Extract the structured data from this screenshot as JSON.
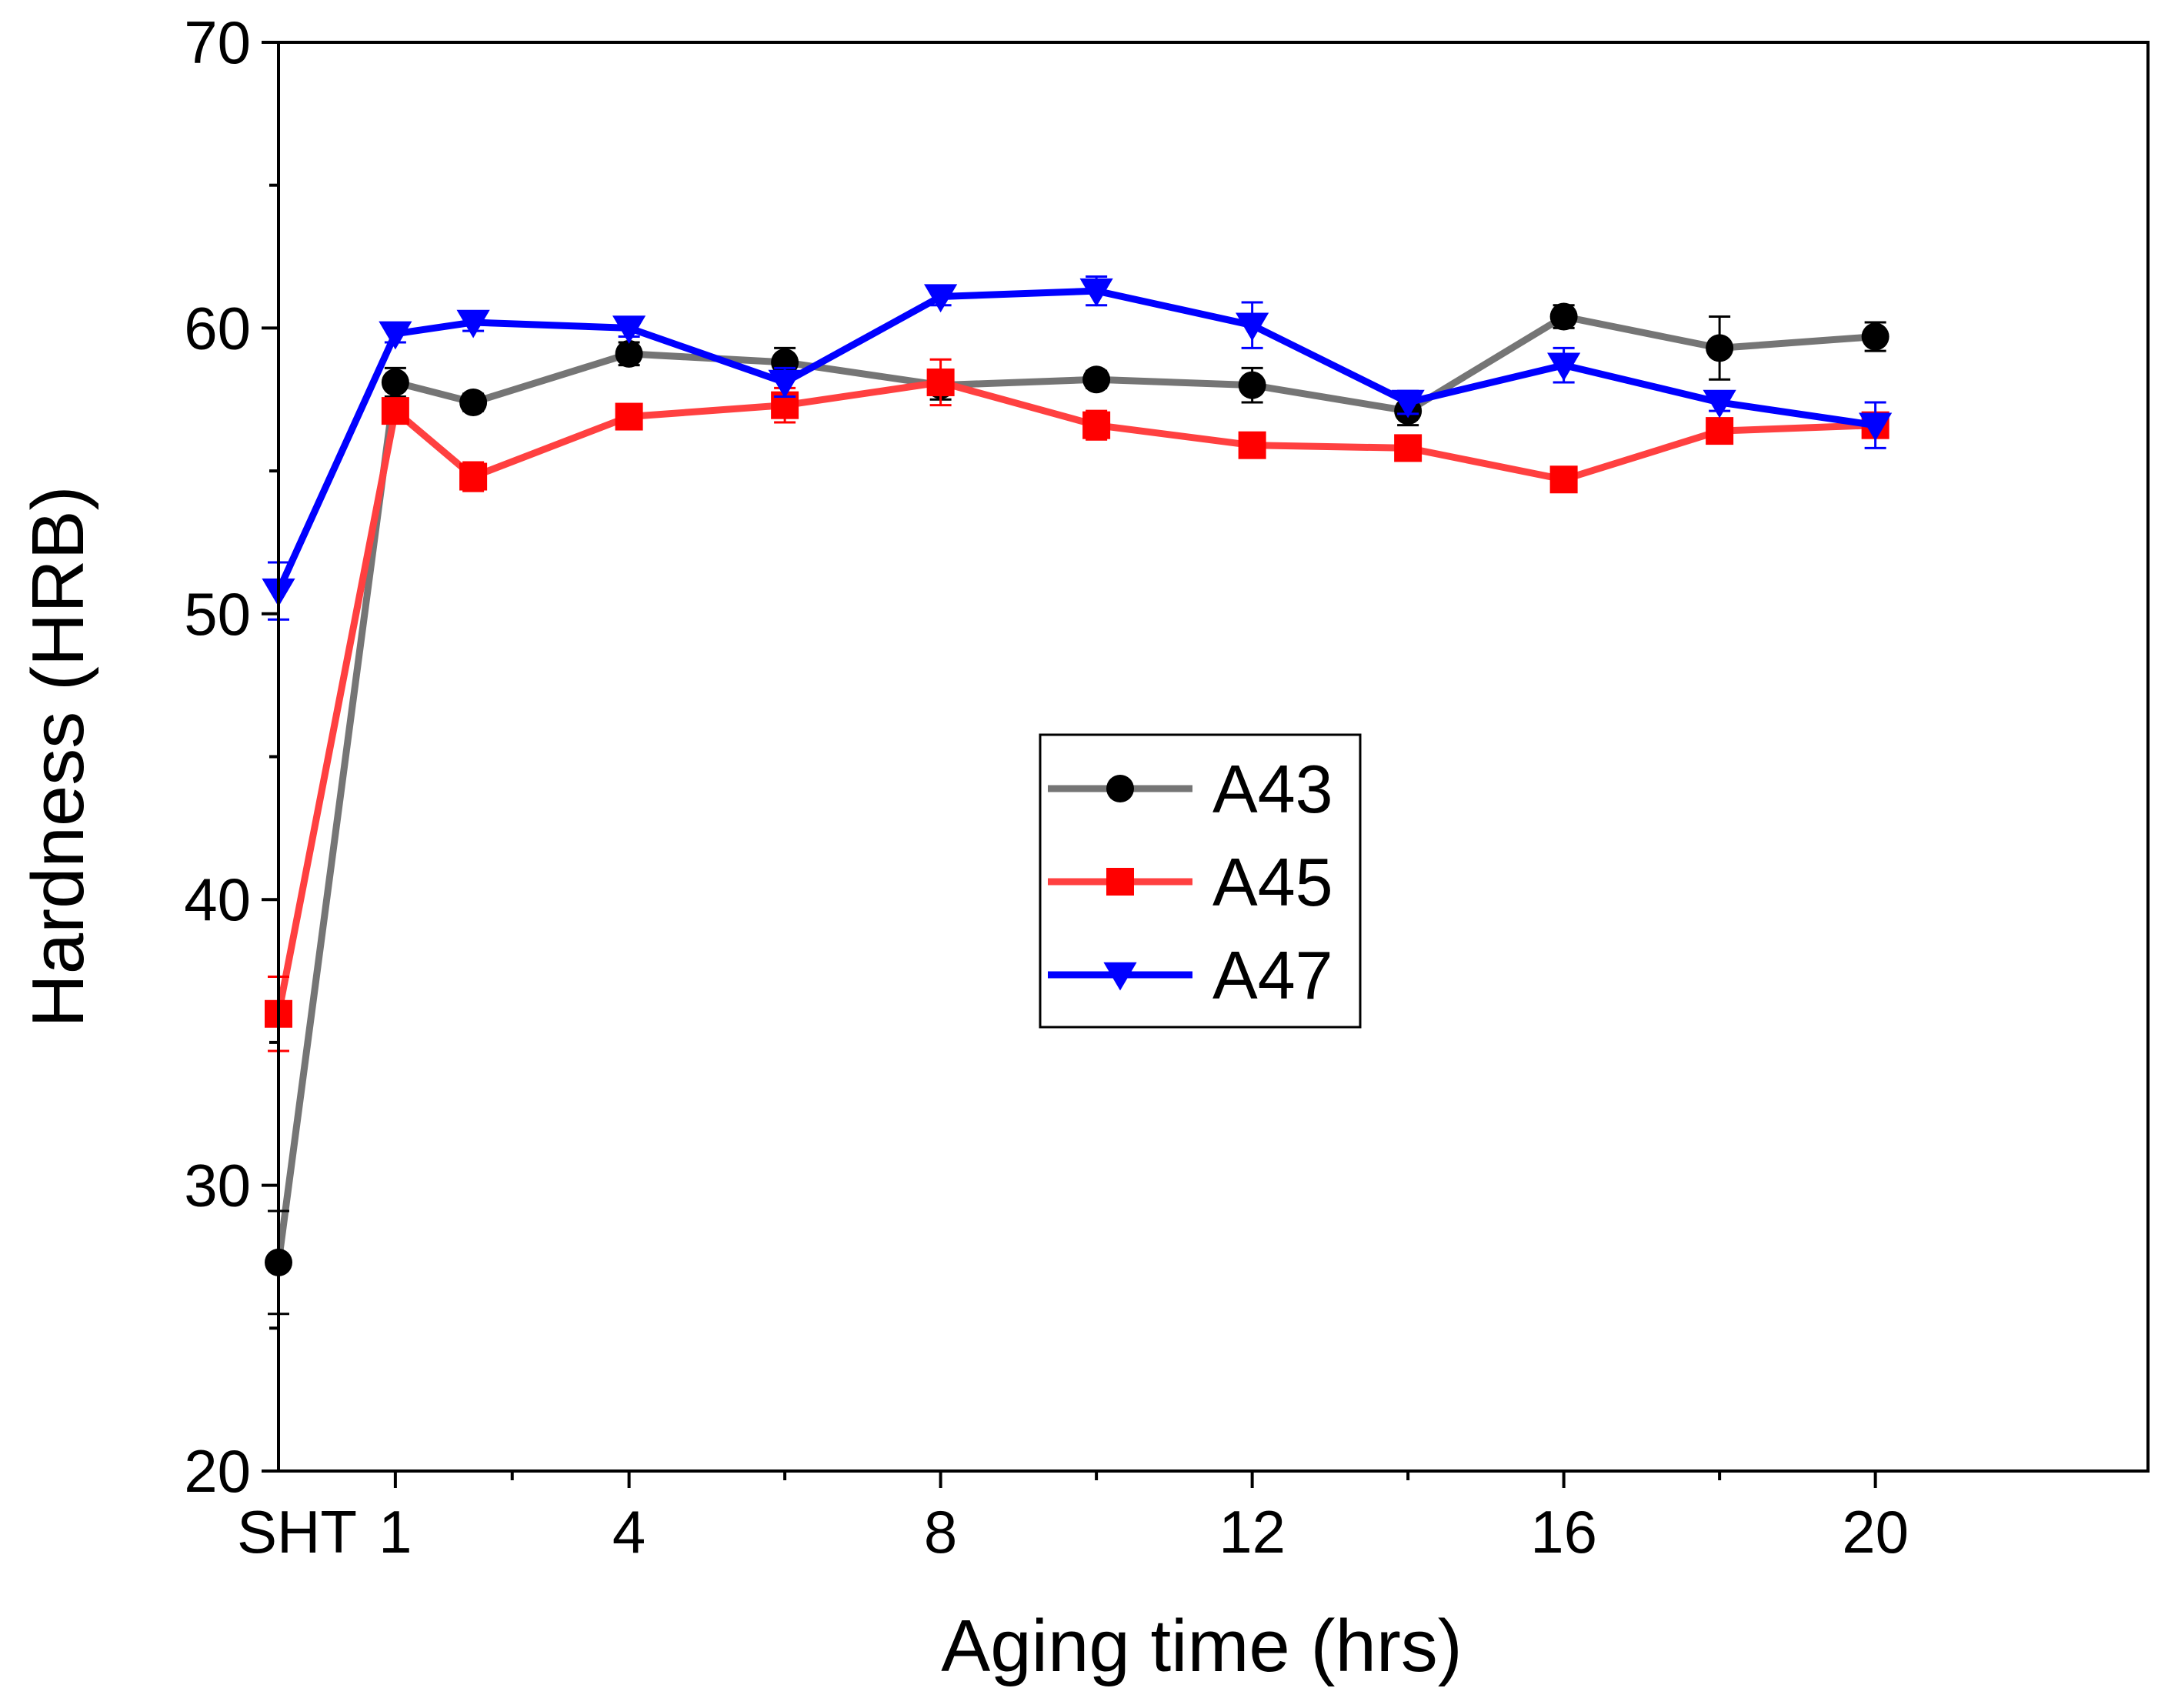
{
  "chart_data": {
    "type": "line",
    "title": "",
    "xlabel": "Aging time (hrs)",
    "ylabel": "Hardness (HRB)",
    "xlim": [
      -0.5,
      23.5
    ],
    "ylim": [
      20,
      70
    ],
    "x_ticks": [
      {
        "value": -0.5,
        "label": "SHT"
      },
      {
        "value": 1,
        "label": "1"
      },
      {
        "value": 4,
        "label": "4"
      },
      {
        "value": 8,
        "label": "8"
      },
      {
        "value": 12,
        "label": "12"
      },
      {
        "value": 16,
        "label": "16"
      },
      {
        "value": 20,
        "label": "20"
      }
    ],
    "x_minor_ticks": [
      2.5,
      6,
      10,
      14,
      18
    ],
    "y_ticks": [
      {
        "value": 20,
        "label": "20"
      },
      {
        "value": 30,
        "label": "30"
      },
      {
        "value": 40,
        "label": "40"
      },
      {
        "value": 50,
        "label": "50"
      },
      {
        "value": 60,
        "label": "60"
      },
      {
        "value": 70,
        "label": "70"
      }
    ],
    "y_minor_ticks": [
      25,
      35,
      45,
      55,
      65
    ],
    "x": [
      -0.5,
      1,
      2,
      4,
      6,
      8,
      10,
      12,
      14,
      16,
      18,
      20
    ],
    "legend_position": "center",
    "series": [
      {
        "name": "A43",
        "color": "#757575",
        "marker_color": "#000000",
        "error_color": "#000000",
        "marker": "circle",
        "values": [
          27.3,
          58.1,
          57.4,
          59.1,
          58.8,
          58.0,
          58.2,
          58.0,
          57.1,
          60.4,
          59.3,
          59.7
        ],
        "errors": [
          1.8,
          0.5,
          0.3,
          0.4,
          0.5,
          0.5,
          0.3,
          0.6,
          0.5,
          0.4,
          1.1,
          0.5
        ]
      },
      {
        "name": "A45",
        "color": "#ff4040",
        "marker_color": "#ff0000",
        "error_color": "#ff0000",
        "marker": "square",
        "values": [
          36.0,
          57.1,
          54.8,
          56.9,
          57.3,
          58.1,
          56.6,
          55.9,
          55.8,
          54.7,
          56.4,
          56.6
        ],
        "errors": [
          1.3,
          0.4,
          0.5,
          0.4,
          0.6,
          0.8,
          0.5,
          0.3,
          0.3,
          0.3,
          0.3,
          0.4
        ]
      },
      {
        "name": "A47",
        "color": "#0000ff",
        "marker_color": "#0000ff",
        "error_color": "#0000ff",
        "marker": "triangle-down",
        "values": [
          50.8,
          59.8,
          60.2,
          60.0,
          58.1,
          61.1,
          61.3,
          60.1,
          57.4,
          58.7,
          57.4,
          56.6
        ],
        "errors": [
          1.0,
          0.3,
          0.3,
          0.3,
          0.5,
          0.3,
          0.5,
          0.8,
          0.4,
          0.6,
          0.3,
          0.8
        ]
      }
    ]
  }
}
